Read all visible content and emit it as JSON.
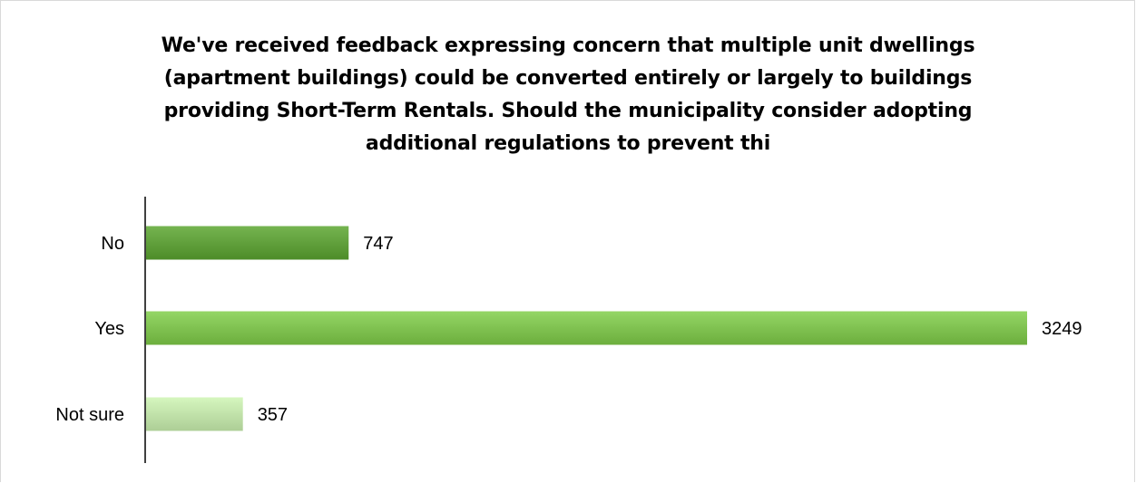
{
  "chart_data": {
    "type": "bar",
    "orientation": "horizontal",
    "title": "We've received feedback expressing concern that multiple unit dwellings (apartment buildings) could be converted entirely or largely to buildings providing Short-Term Rentals. Should the municipality consider adopting additional regulations to prevent thi",
    "categories": [
      "No",
      "Yes",
      "Not sure"
    ],
    "values": [
      747,
      3249,
      357
    ],
    "data_labels": [
      "747",
      "3249",
      "357"
    ],
    "colors": [
      "#5f9e3a",
      "#7ec04f",
      "#bfe0a8"
    ],
    "xlabel": "",
    "ylabel": "",
    "xlim": [
      0,
      3249
    ],
    "grid": false,
    "legend": "none"
  }
}
